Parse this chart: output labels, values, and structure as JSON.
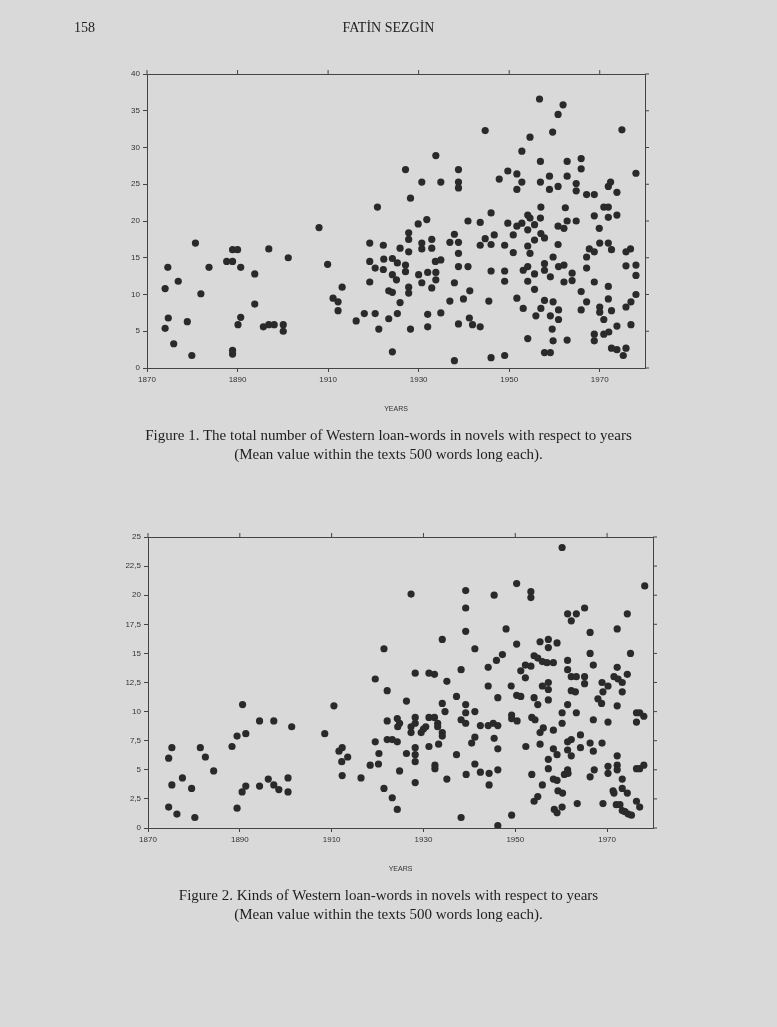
{
  "chart_data": [
    {
      "type": "scatter",
      "title": "Figure 1. The total number of Western loan-words in novels with respect to years",
      "subtitle": "(Mean value within the texts 500 words long each).",
      "xlabel": "YEARS",
      "annotations": [
        "158",
        "FATİN SEZGİN"
      ],
      "color": "#2a2a2a",
      "marker": "circle",
      "xlim": [
        1870,
        1980
      ],
      "xticks": [
        1870,
        1890,
        1910,
        1930,
        1950,
        1970
      ],
      "ylim": [
        0,
        40
      ],
      "yticks": [
        0,
        5,
        10,
        15,
        20,
        25,
        30,
        35,
        40
      ],
      "x": [
        1874.0,
        1874.0,
        1874.6,
        1874.7,
        1875.9,
        1876.9,
        1878.9,
        1879.9,
        1880.7,
        1881.9,
        1883.7,
        1887.6,
        1888.9,
        1888.9,
        1890.0,
        1890.7,
        1888.9,
        1888.9,
        1890.1,
        1890.7,
        1893.8,
        1893.8,
        1895.7,
        1896.9,
        1896.9,
        1898.1,
        1900.1,
        1900.1,
        1901.2,
        1908.0,
        1909.9,
        1911.1,
        1912.2,
        1912.2,
        1913.1,
        1916.2,
        1918.0,
        1919.2,
        1919.2,
        1919.2,
        1920.4,
        1920.4,
        1920.9,
        1921.2,
        1922.2,
        1922.3,
        1922.2,
        1923.4,
        1923.4,
        1924.2,
        1924.2,
        1924.2,
        1925.3,
        1925.1,
        1924.2,
        1925.3,
        1925.9,
        1925.9,
        1927.1,
        1927.1,
        1927.8,
        1927.8,
        1927.8,
        1927.1,
        1928.2,
        1927.8,
        1927.8,
        1928.2,
        1929.9,
        1930.0,
        1930.7,
        1930.7,
        1930.7,
        1930.7,
        1931.8,
        1932.0,
        1932.0,
        1932.0,
        1932.9,
        1932.9,
        1933.8,
        1933.7,
        1933.8,
        1933.8,
        1932.9,
        1934.9,
        1934.9,
        1934.9,
        1936.9,
        1936.9,
        1937.9,
        1938.8,
        1938.8,
        1938.8,
        1938.8,
        1938.8,
        1938.8,
        1937.9,
        1938.8,
        1937.9,
        1939.9,
        1940.9,
        1940.9,
        1941.3,
        1941.2,
        1941.9,
        1943.6,
        1943.6,
        1943.6,
        1944.7,
        1944.7,
        1945.5,
        1946.0,
        1946.0,
        1946.0,
        1946.0,
        1946.7,
        1947.8,
        1949.0,
        1949.0,
        1949.0,
        1949.0,
        1949.7,
        1949.7,
        1950.9,
        1950.9,
        1951.7,
        1951.7,
        1951.7,
        1951.7,
        1952.8,
        1952.8,
        1952.8,
        1953.1,
        1953.1,
        1954.1,
        1954.6,
        1954.1,
        1954.6,
        1954.1,
        1954.6,
        1954.1,
        1954.1,
        1954.1,
        1955.6,
        1955.6,
        1955.6,
        1955.6,
        1955.9,
        1956.7,
        1956.9,
        1956.9,
        1957.0,
        1956.9,
        1957.0,
        1957.0,
        1957.8,
        1957.8,
        1957.8,
        1957.8,
        1957.8,
        1959.1,
        1958.9,
        1958.9,
        1959.1,
        1959.1,
        1959.5,
        1959.7,
        1959.6,
        1960.8,
        1960.8,
        1960.8,
        1960.8,
        1960.9,
        1960.9,
        1960.9,
        1959.7,
        1959.7,
        1961.9,
        1962.1,
        1962.1,
        1962.1,
        1962.4,
        1962.8,
        1962.8,
        1962.8,
        1962.8,
        1963.9,
        1963.9,
        1964.8,
        1964.8,
        1964.8,
        1965.9,
        1965.9,
        1965.9,
        1965.9,
        1967.1,
        1967.1,
        1967.1,
        1967.1,
        1967.7,
        1968.8,
        1968.8,
        1968.8,
        1968.8,
        1968.8,
        1968.8,
        1969.9,
        1970.0,
        1970.0,
        1970.0,
        1970.9,
        1970.9,
        1970.9,
        1971.9,
        1971.9,
        1971.9,
        1972.4,
        1971.9,
        1971.9,
        1971.9,
        1972.0,
        1972.6,
        1972.6,
        1972.6,
        1973.8,
        1973.8,
        1973.8,
        1973.8,
        1974.9,
        1975.2,
        1975.8,
        1975.8,
        1975.8,
        1975.8,
        1976.8,
        1976.9,
        1976.9,
        1978.0,
        1978.0,
        1978.0,
        1978.0
      ],
      "values": [
        5.4,
        10.8,
        13.7,
        6.8,
        3.3,
        11.8,
        6.3,
        1.7,
        17.0,
        10.1,
        13.7,
        14.5,
        14.5,
        16.1,
        16.1,
        13.7,
        2.4,
        1.9,
        5.9,
        6.9,
        12.8,
        8.7,
        5.6,
        16.2,
        5.9,
        5.9,
        5.9,
        5.0,
        15.0,
        19.1,
        14.1,
        9.5,
        9.0,
        7.8,
        11.0,
        6.4,
        7.4,
        17.0,
        14.5,
        11.7,
        13.6,
        7.4,
        21.9,
        5.3,
        16.7,
        14.8,
        13.4,
        10.5,
        6.7,
        14.9,
        12.7,
        2.2,
        14.3,
        12.0,
        10.3,
        7.4,
        8.9,
        16.3,
        14.0,
        13.1,
        15.8,
        18.4,
        17.5,
        27.0,
        23.1,
        11.0,
        10.2,
        5.3,
        19.6,
        12.7,
        25.3,
        17.0,
        16.2,
        11.6,
        20.2,
        13.0,
        7.3,
        5.6,
        17.5,
        16.3,
        28.9,
        14.5,
        13.0,
        12.0,
        10.9,
        14.7,
        25.3,
        7.5,
        9.1,
        17.1,
        18.2,
        27.0,
        25.3,
        24.5,
        17.1,
        15.6,
        13.8,
        11.6,
        6.0,
        1.0,
        9.4,
        20.0,
        13.8,
        10.5,
        6.8,
        5.9,
        19.8,
        16.7,
        5.6,
        32.3,
        17.6,
        9.1,
        21.1,
        16.8,
        13.2,
        1.4,
        18.1,
        25.7,
        1.7,
        16.7,
        13.2,
        11.8,
        26.8,
        19.7,
        18.1,
        15.7,
        26.4,
        24.3,
        19.3,
        9.5,
        25.3,
        29.5,
        19.7,
        13.3,
        8.1,
        20.8,
        20.4,
        18.8,
        31.4,
        16.6,
        15.6,
        13.8,
        11.8,
        4.0,
        19.5,
        17.4,
        12.8,
        10.7,
        7.1,
        36.6,
        28.1,
        25.3,
        21.9,
        20.4,
        18.3,
        8.1,
        17.7,
        14.2,
        13.3,
        9.2,
        2.1,
        2.1,
        26.1,
        24.3,
        12.4,
        7.1,
        5.3,
        15.1,
        32.1,
        34.5,
        24.7,
        19.3,
        16.8,
        13.8,
        7.9,
        6.6,
        9.0,
        3.7,
        35.8,
        19.0,
        14.0,
        11.7,
        21.8,
        28.1,
        26.1,
        20.0,
        3.8,
        12.9,
        11.9,
        25.1,
        24.1,
        20.0,
        28.5,
        27.1,
        10.4,
        7.9,
        23.6,
        15.1,
        13.6,
        9.0,
        16.2,
        23.6,
        20.7,
        11.7,
        4.6,
        3.7,
        15.8,
        19.0,
        17.0,
        8.3,
        7.6,
        6.6,
        4.6,
        21.9,
        21.9,
        20.5,
        24.7,
        25.3,
        17.0,
        11.1,
        9.4,
        4.9,
        16.1,
        7.8,
        2.7,
        2.5,
        23.9,
        20.8,
        5.7,
        32.4,
        1.7,
        2.7,
        15.8,
        13.9,
        8.3,
        16.2,
        9.0,
        5.9,
        26.5,
        14.0,
        12.6,
        10.0
      ]
    },
    {
      "type": "scatter",
      "title": "Figure 2. Kinds of Western loan-words in novels with respect to years",
      "subtitle": "(Mean value within the texts 500 words long each).",
      "xlabel": "YEARS",
      "color": "#2a2a2a",
      "marker": "circle",
      "xlim": [
        1870,
        1980
      ],
      "xticks": [
        1870,
        1890,
        1910,
        1930,
        1950,
        1970
      ],
      "ylim": [
        0,
        25
      ],
      "yticks": [
        0,
        {
          "value": 2.5,
          "label": "2,5"
        },
        5,
        {
          "value": 7.5,
          "label": "7,5"
        },
        10,
        {
          "value": 12.5,
          "label": "12,5"
        },
        15,
        {
          "value": 17.5,
          "label": "17,5"
        },
        20,
        {
          "value": 22.5,
          "label": "22,5"
        },
        25
      ],
      "x": [
        1874.5,
        1874.5,
        1875.2,
        1875.2,
        1876.3,
        1877.5,
        1879.5,
        1880.2,
        1881.4,
        1882.5,
        1884.3,
        1888.3,
        1889.4,
        1889.4,
        1890.6,
        1890.5,
        1891.3,
        1891.3,
        1894.3,
        1894.3,
        1896.2,
        1897.4,
        1897.4,
        1898.5,
        1900.5,
        1900.5,
        1901.3,
        1908.5,
        1910.5,
        1911.6,
        1912.3,
        1912.2,
        1912.3,
        1913.5,
        1916.4,
        1918.4,
        1919.5,
        1919.5,
        1920.2,
        1920.3,
        1921.4,
        1921.4,
        1922.1,
        1922.1,
        1922.1,
        1923.2,
        1924.3,
        1923.2,
        1924.3,
        1924.3,
        1924.8,
        1924.8,
        1924.4,
        1926.3,
        1926.3,
        1927.3,
        1927.3,
        1927.3,
        1928.2,
        1928.2,
        1928.2,
        1928.2,
        1928.2,
        1928.2,
        1928.2,
        1929.5,
        1930.0,
        1930.5,
        1931.2,
        1932.4,
        1931.2,
        1932.4,
        1931.2,
        1932.5,
        1932.5,
        1933.1,
        1933.1,
        1933.3,
        1934.1,
        1934.1,
        1934.1,
        1934.1,
        1934.7,
        1935.1,
        1935.1,
        1937.2,
        1937.2,
        1938.2,
        1938.2,
        1939.2,
        1938.2,
        1939.2,
        1939.2,
        1939.2,
        1939.2,
        1939.2,
        1939.3,
        1941.2,
        1941.2,
        1940.5,
        1941.2,
        1941.2,
        1942.4,
        1942.4,
        1944.1,
        1944.1,
        1944.1,
        1944.3,
        1944.3,
        1945.4,
        1945.2,
        1946.2,
        1945.4,
        1945.9,
        1946.2,
        1946.2,
        1946.2,
        1946.2,
        1947.2,
        1948.0,
        1949.1,
        1949.2,
        1949.2,
        1949.2,
        1950.3,
        1950.3,
        1950.3,
        1951.2,
        1950.4,
        1951.2,
        1952.2,
        1952.2,
        1952.3,
        1953.4,
        1953.4,
        1953.4,
        1953.6,
        1954.3,
        1953.6,
        1954.1,
        1954.9,
        1954.1,
        1954.9,
        1954.1,
        1954.9,
        1955.4,
        1955.4,
        1956.1,
        1955.4,
        1955.9,
        1956.9,
        1958.3,
        1955.9,
        1957.2,
        1957.2,
        1955.9,
        1957.2,
        1957.2,
        1957.2,
        1957.2,
        1957.2,
        1958.3,
        1959.1,
        1958.3,
        1959.1,
        1959.1,
        1958.3,
        1959.3,
        1960.3,
        1958.5,
        1959.1,
        1960.2,
        1960.2,
        1960.2,
        1960.2,
        1960.7,
        1961.4,
        1963.3,
        1962.2,
        1961.4,
        1961.4,
        1961.4,
        1961.4,
        1962.2,
        1961.4,
        1962.2,
        1961.4,
        1961.5,
        1962.2,
        1963.3,
        1962.2,
        1963.1,
        1963.3,
        1963.5,
        1964.2,
        1964.2,
        1965.1,
        1965.1,
        1965.1,
        1966.3,
        1966.3,
        1966.3,
        1967.0,
        1966.3,
        1967.0,
        1967.0,
        1967.2,
        1968.0,
        1968.8,
        1968.9,
        1969.1,
        1970.2,
        1968.9,
        1969.1,
        1970.2,
        1970.2,
        1970.2,
        1971.3,
        1971.5,
        1971.5,
        1972.4,
        1972.0,
        1972.8,
        1972.2,
        1972.2,
        1972.2,
        1972.2,
        1972.2,
        1972.2,
        1973.3,
        1973.3,
        1973.3,
        1973.3,
        1973.3,
        1973.9,
        1974.6,
        1974.4,
        1974.4,
        1974.4,
        1975.1,
        1975.3,
        1976.4,
        1977.1,
        1976.4,
        1976.4,
        1977.1,
        1976.4,
        1977.1,
        1978.0,
        1978.0,
        1978.2
      ],
      "values": [
        1.8,
        6.0,
        6.9,
        3.7,
        1.2,
        4.3,
        3.4,
        0.9,
        6.9,
        6.1,
        4.9,
        7.0,
        7.9,
        1.7,
        10.6,
        3.1,
        8.1,
        3.6,
        9.2,
        3.6,
        4.2,
        9.2,
        3.7,
        3.3,
        4.3,
        3.1,
        8.7,
        8.1,
        10.5,
        6.6,
        6.9,
        5.7,
        4.5,
        6.1,
        4.3,
        5.4,
        12.8,
        7.4,
        5.5,
        6.4,
        15.4,
        3.4,
        11.8,
        9.2,
        7.6,
        2.6,
        1.6,
        7.6,
        7.4,
        9.4,
        4.9,
        9.0,
        8.7,
        10.9,
        6.4,
        20.1,
        8.7,
        8.2,
        9.5,
        9.0,
        13.3,
        6.9,
        6.3,
        5.7,
        3.9,
        8.2,
        8.5,
        8.7,
        13.3,
        13.2,
        9.5,
        9.5,
        7.0,
        5.4,
        5.1,
        9.0,
        8.7,
        7.2,
        16.2,
        10.7,
        8.2,
        7.9,
        10.0,
        12.6,
        4.2,
        11.3,
        6.3,
        13.6,
        9.3,
        9.0,
        0.9,
        20.4,
        18.9,
        16.9,
        10.6,
        9.9,
        4.6,
        15.4,
        10.0,
        7.3,
        7.8,
        5.5,
        8.8,
        4.8,
        13.8,
        12.2,
        8.8,
        4.7,
        3.7,
        20.0,
        9.0,
        8.8,
        7.7,
        14.4,
        11.2,
        6.8,
        5.0,
        0.2,
        14.9,
        17.1,
        12.2,
        9.7,
        9.4,
        1.1,
        21.0,
        15.8,
        11.4,
        11.3,
        9.2,
        13.5,
        14.0,
        12.9,
        7.0,
        20.3,
        19.8,
        13.9,
        9.5,
        9.3,
        4.6,
        14.8,
        14.6,
        11.2,
        10.6,
        2.3,
        2.7,
        16.0,
        8.2,
        8.6,
        7.2,
        14.3,
        14.2,
        14.2,
        12.2,
        11.9,
        12.5,
        3.7,
        16.2,
        15.5,
        11.0,
        5.9,
        5.1,
        6.8,
        6.3,
        4.2,
        4.1,
        15.9,
        8.4,
        3.2,
        3.0,
        1.6,
        1.3,
        1.8,
        24.1,
        9.9,
        9.0,
        4.6,
        18.4,
        18.4,
        17.8,
        14.4,
        13.6,
        10.6,
        7.4,
        7.6,
        6.7,
        6.2,
        5.0,
        4.7,
        13.0,
        13.0,
        11.8,
        11.7,
        9.9,
        2.1,
        8.0,
        6.9,
        18.9,
        13.0,
        12.4,
        16.8,
        15.0,
        7.3,
        6.6,
        4.4,
        14.0,
        9.3,
        5.0,
        11.1,
        10.7,
        12.5,
        11.7,
        12.2,
        7.3,
        2.1,
        9.1,
        5.3,
        4.7,
        3.2,
        3.0,
        13.0,
        12.8,
        2.0,
        2.0,
        17.1,
        13.8,
        10.5,
        6.2,
        5.4,
        5.0,
        12.5,
        11.7,
        4.2,
        3.4,
        1.5,
        1.4,
        1.2,
        13.2,
        3.0,
        18.4,
        15.0,
        1.1,
        9.9,
        9.9,
        9.1,
        5.1,
        5.1,
        2.3,
        1.8,
        9.6,
        5.4,
        20.8
      ]
    }
  ]
}
